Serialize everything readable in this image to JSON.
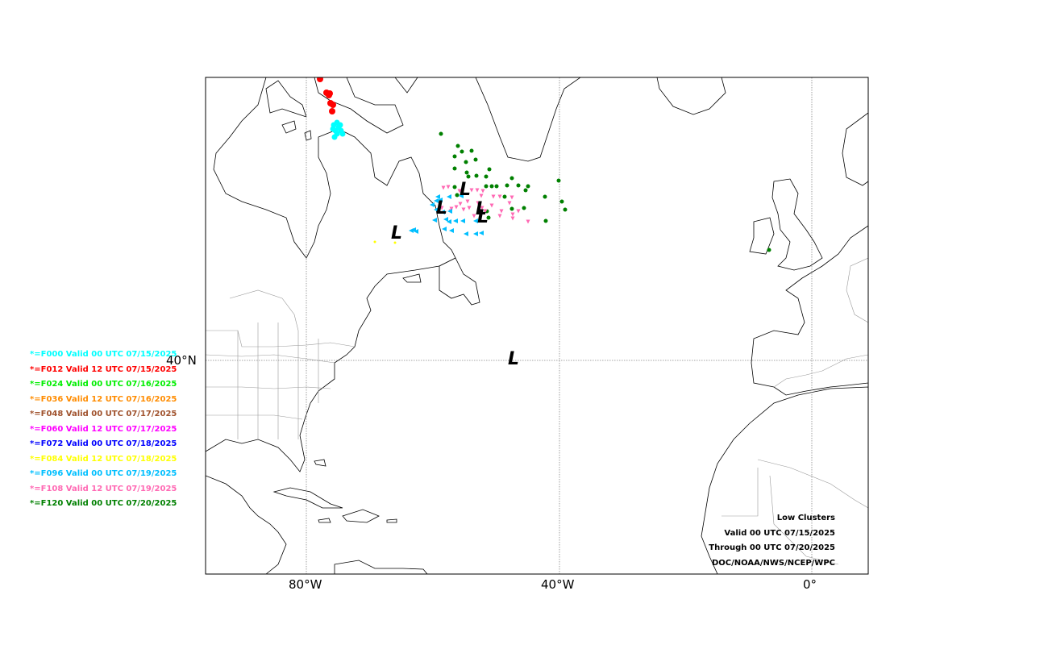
{
  "legend": [
    {
      "label": "*=F000 Valid 00 UTC 07/15/2025",
      "color": "#00ffff"
    },
    {
      "label": "*=F012 Valid 12 UTC 07/15/2025",
      "color": "#ff0000"
    },
    {
      "label": "*=F024 Valid 00 UTC 07/16/2025",
      "color": "#00ee00"
    },
    {
      "label": "*=F036 Valid 12 UTC 07/16/2025",
      "color": "#ff8c00"
    },
    {
      "label": "*=F048 Valid 00 UTC 07/17/2025",
      "color": "#a0522d"
    },
    {
      "label": "*=F060 Valid 12 UTC 07/17/2025",
      "color": "#ff00ff"
    },
    {
      "label": "*=F072 Valid 00 UTC 07/18/2025",
      "color": "#0000ff"
    },
    {
      "label": "*=F084 Valid 12 UTC 07/18/2025",
      "color": "#ffff00"
    },
    {
      "label": "*=F096 Valid 00 UTC 07/19/2025",
      "color": "#00bfff"
    },
    {
      "label": "*=F108 Valid 12 UTC 07/19/2025",
      "color": "#ff69b4"
    },
    {
      "label": "*=F120 Valid 00 UTC 07/20/2025",
      "color": "#008000"
    }
  ],
  "axes": {
    "x_ticks": [
      "80°W",
      "40°W",
      "0°"
    ],
    "y_ticks": [
      "40°N"
    ]
  },
  "credits": {
    "title": "Low Clusters",
    "valid": "Valid 00 UTC 07/15/2025",
    "through": "Through 00 UTC 07/20/2025",
    "agency": "DOC/NOAA/NWS/NCEP/WPC"
  },
  "low_marker": "L"
}
